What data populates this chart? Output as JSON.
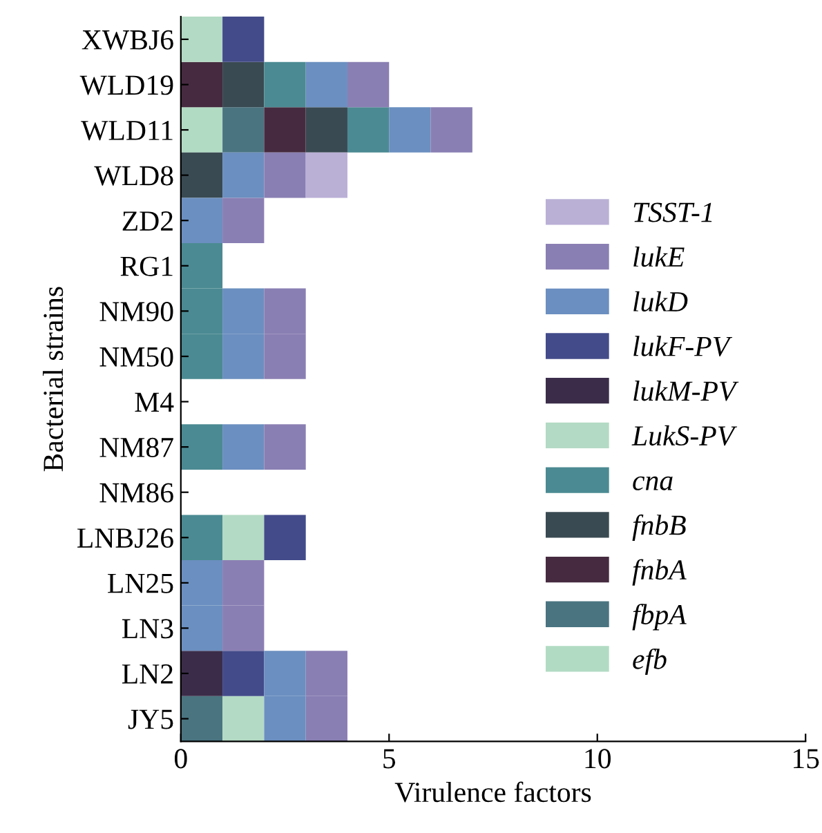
{
  "chart_data": {
    "type": "bar",
    "orientation": "horizontal",
    "stacked": true,
    "xlabel": "Virulence factors",
    "ylabel": "Bacterial strains",
    "categories": [
      "XWBJ6",
      "WLD19",
      "WLD11",
      "WLD8",
      "ZD2",
      "RG1",
      "NM90",
      "NM50",
      "M4",
      "NM87",
      "NM86",
      "LNBJ26",
      "LN25",
      "LN3",
      "LN2",
      "JY5"
    ],
    "series": [
      {
        "name": "efb",
        "color": "#b2dbc3",
        "values": [
          0,
          0,
          1,
          0,
          0,
          0,
          0,
          0,
          0,
          0,
          0,
          0,
          0,
          0,
          0,
          0
        ]
      },
      {
        "name": "fbpA",
        "color": "#4a7480",
        "values": [
          0,
          0,
          1,
          0,
          0,
          0,
          0,
          0,
          0,
          0,
          0,
          0,
          0,
          0,
          0,
          1
        ]
      },
      {
        "name": "fnbA",
        "color": "#462b40",
        "values": [
          0,
          1,
          1,
          0,
          0,
          0,
          0,
          0,
          0,
          0,
          0,
          0,
          0,
          0,
          0,
          0
        ]
      },
      {
        "name": "fnbB",
        "color": "#3a4a52",
        "values": [
          0,
          1,
          1,
          1,
          0,
          0,
          0,
          0,
          0,
          0,
          0,
          0,
          0,
          0,
          0,
          0
        ]
      },
      {
        "name": "cna",
        "color": "#4b8a92",
        "values": [
          0,
          1,
          1,
          0,
          0,
          1,
          1,
          1,
          0,
          1,
          0,
          1,
          0,
          0,
          0,
          0
        ]
      },
      {
        "name": "LukS-PV",
        "color": "#b3dac4",
        "values": [
          1,
          0,
          0,
          0,
          0,
          0,
          0,
          0,
          0,
          0,
          0,
          1,
          0,
          0,
          0,
          1
        ]
      },
      {
        "name": "lukM-PV",
        "color": "#3b2d4a",
        "values": [
          0,
          0,
          0,
          0,
          0,
          0,
          0,
          0,
          0,
          0,
          0,
          0,
          0,
          0,
          1,
          0
        ]
      },
      {
        "name": "lukF-PV",
        "color": "#434b8a",
        "values": [
          1,
          0,
          0,
          0,
          0,
          0,
          0,
          0,
          0,
          0,
          0,
          1,
          0,
          0,
          1,
          0
        ]
      },
      {
        "name": "lukD",
        "color": "#6b8fc0",
        "values": [
          0,
          1,
          1,
          1,
          1,
          0,
          1,
          1,
          0,
          1,
          0,
          0,
          1,
          1,
          1,
          1
        ]
      },
      {
        "name": "lukE",
        "color": "#8a7fb3",
        "values": [
          0,
          1,
          1,
          1,
          1,
          0,
          1,
          1,
          0,
          1,
          0,
          0,
          1,
          1,
          1,
          1
        ]
      },
      {
        "name": "TSST-1",
        "color": "#bab0d6",
        "values": [
          0,
          0,
          0,
          1,
          0,
          0,
          0,
          0,
          0,
          0,
          0,
          0,
          0,
          0,
          0,
          0
        ]
      }
    ],
    "xlim": [
      0,
      15
    ],
    "xticks": [
      0,
      5,
      10,
      15
    ],
    "legend": "right"
  }
}
